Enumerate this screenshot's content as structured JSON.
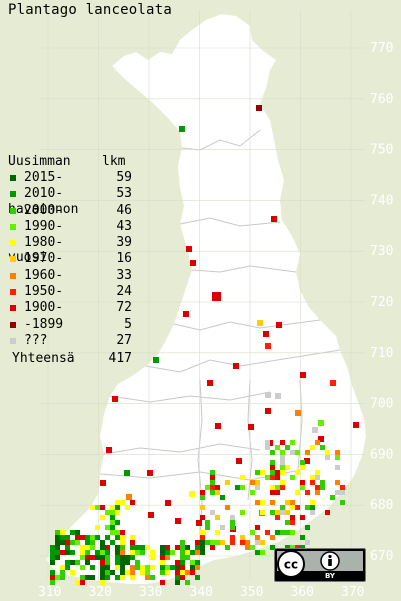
{
  "title": "Plantago lanceolata",
  "legend": {
    "header_line1": "Uusimman",
    "header_line2": "havainnon",
    "header_line3": "vuosi",
    "header_count": "lkm",
    "items": [
      {
        "period": "2015-",
        "count": "59",
        "color": "#006600"
      },
      {
        "period": "2010-",
        "count": "53",
        "color": "#009900"
      },
      {
        "period": "2000-",
        "count": "46",
        "color": "#33cc00"
      },
      {
        "period": "1990-",
        "count": "43",
        "color": "#66ee00"
      },
      {
        "period": "1980-",
        "count": "39",
        "color": "#ffff00"
      },
      {
        "period": "1970-",
        "count": "16",
        "color": "#ffcc00"
      },
      {
        "period": "1960-",
        "count": "33",
        "color": "#ff8000"
      },
      {
        "period": "1950-",
        "count": "24",
        "color": "#ff2000"
      },
      {
        "period": "1900-",
        "count": "72",
        "color": "#dd0000"
      },
      {
        "period": "-1899",
        "count": "5",
        "color": "#990000"
      },
      {
        "period": "???",
        "count": "27",
        "color": "#cccccc"
      }
    ],
    "total_label": "Yhteensä",
    "total_value": "417"
  },
  "axes": {
    "y_ticks": [
      "770",
      "760",
      "750",
      "740",
      "730",
      "720",
      "710",
      "700",
      "690",
      "680",
      "670"
    ],
    "x_ticks": [
      "310",
      "320",
      "330",
      "340",
      "350",
      "360",
      "370"
    ]
  },
  "license_badge": {
    "symbols": "cc-by-icon",
    "text": "BY"
  }
}
